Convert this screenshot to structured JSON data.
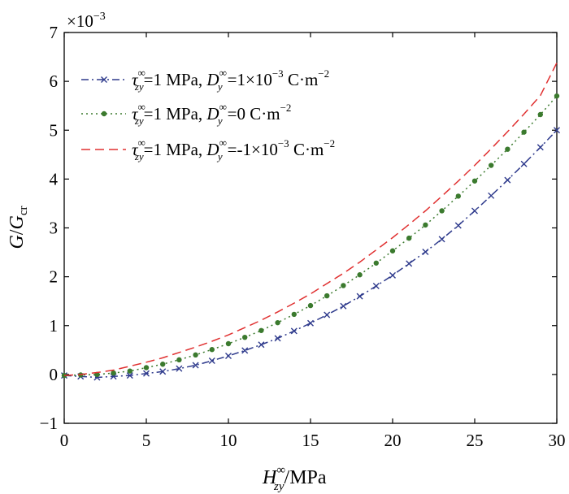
{
  "chart_data": {
    "type": "line",
    "multiplier": "×10",
    "multiplier_exp": "−3",
    "xlim": [
      0,
      30
    ],
    "ylim": [
      -1,
      7
    ],
    "xticks": [
      0,
      5,
      10,
      15,
      20,
      25,
      30
    ],
    "yticks": [
      -1,
      0,
      1,
      2,
      3,
      4,
      5,
      6,
      7
    ],
    "xtick_labels": [
      "0",
      "5",
      "10",
      "15",
      "20",
      "25",
      "30"
    ],
    "ytick_labels": [
      "−1",
      "0",
      "1",
      "2",
      "3",
      "4",
      "5",
      "6",
      "7"
    ],
    "xlabel": {
      "base": "H",
      "sup": "∞",
      "sub": "zy",
      "unit": "/MPa"
    },
    "ylabel": {
      "num": "G",
      "den": "G",
      "den_sub": "cr"
    },
    "x": [
      0,
      1,
      2,
      3,
      4,
      5,
      6,
      7,
      8,
      9,
      10,
      11,
      12,
      13,
      14,
      15,
      16,
      17,
      18,
      19,
      20,
      21,
      22,
      23,
      24,
      25,
      26,
      27,
      28,
      29,
      30
    ],
    "series": [
      {
        "legend": {
          "tau_sub": "zy",
          "d_sub": "y",
          "mid": "=1 MPa, ",
          "value": "=1×10",
          "exp": "−3",
          "unit": " C·m",
          "unit_exp": "−2"
        },
        "color": "#2e3a8c",
        "style": "dashdot",
        "marker": "x",
        "values": [
          -0.02,
          -0.04,
          -0.06,
          -0.04,
          -0.02,
          0.02,
          0.06,
          0.12,
          0.19,
          0.28,
          0.38,
          0.49,
          0.61,
          0.74,
          0.89,
          1.05,
          1.22,
          1.4,
          1.6,
          1.81,
          2.03,
          2.27,
          2.51,
          2.77,
          3.05,
          3.35,
          3.66,
          3.98,
          4.31,
          4.65,
          5.0
        ]
      },
      {
        "legend": {
          "tau_sub": "zy",
          "d_sub": "y",
          "mid": "=1 MPa, ",
          "value": "=0",
          "exp": "",
          "unit": " C·m",
          "unit_exp": "−2"
        },
        "color": "#3b7a2e",
        "style": "dotted",
        "marker": "o",
        "values": [
          -0.02,
          -0.01,
          0.0,
          0.03,
          0.07,
          0.14,
          0.21,
          0.3,
          0.4,
          0.51,
          0.63,
          0.76,
          0.9,
          1.06,
          1.23,
          1.41,
          1.61,
          1.82,
          2.04,
          2.28,
          2.53,
          2.79,
          3.06,
          3.35,
          3.65,
          3.96,
          4.28,
          4.61,
          4.96,
          5.32,
          5.7
        ]
      },
      {
        "legend": {
          "tau_sub": "zy",
          "d_sub": "y",
          "mid": "=1 MPa, ",
          "value": "=-1×10",
          "exp": "−3",
          "unit": " C·m",
          "unit_exp": "−2"
        },
        "color": "#e03030",
        "style": "dashed",
        "marker": "none",
        "values": [
          -0.02,
          0.0,
          0.04,
          0.09,
          0.17,
          0.25,
          0.34,
          0.45,
          0.56,
          0.68,
          0.81,
          0.96,
          1.11,
          1.28,
          1.46,
          1.65,
          1.86,
          2.07,
          2.3,
          2.55,
          2.8,
          3.07,
          3.35,
          3.65,
          3.96,
          4.28,
          4.62,
          4.97,
          5.33,
          5.71,
          6.38
        ]
      }
    ],
    "legend_position": "top-left",
    "grid": false
  }
}
